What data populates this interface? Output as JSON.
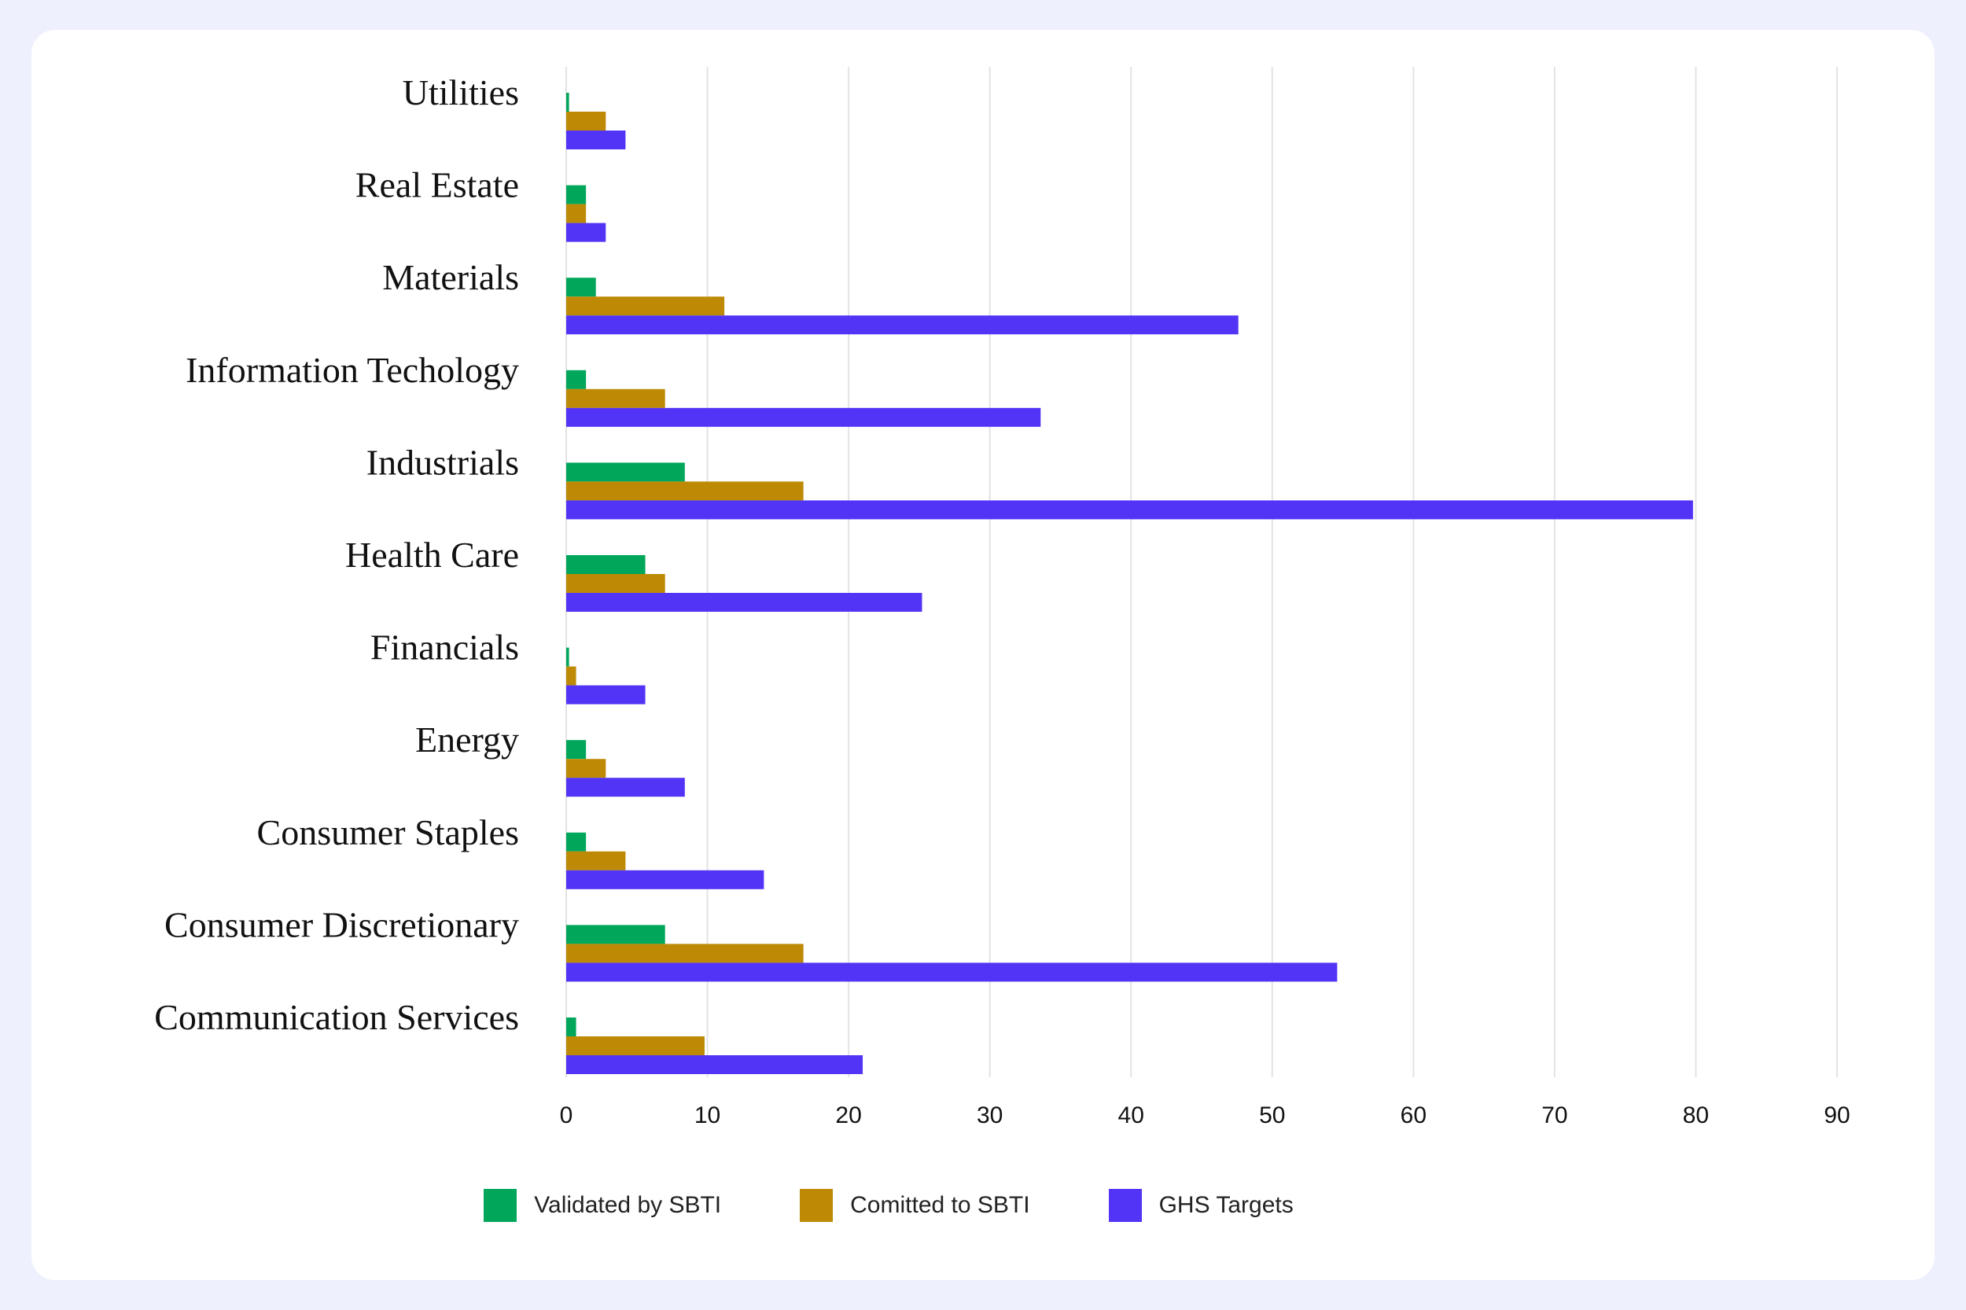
{
  "chart_data": {
    "type": "bar",
    "orientation": "horizontal",
    "title": "",
    "xlabel": "",
    "ylabel": "",
    "xlim": [
      0,
      90
    ],
    "x_ticks": [
      0,
      10,
      20,
      30,
      40,
      50,
      60,
      70,
      80,
      90
    ],
    "grid": true,
    "legend_position": "bottom",
    "categories": [
      "Utilities",
      "Real Estate",
      "Materials",
      "Information Techology",
      "Industrials",
      "Health Care",
      "Financials",
      "Energy",
      "Consumer Staples",
      "Consumer Discretionary",
      "Communication Services"
    ],
    "series": [
      {
        "name": "Validated by SBTI",
        "color": "#00a65a",
        "values": [
          0.2,
          1.4,
          2.1,
          1.4,
          8.4,
          5.6,
          0.2,
          1.4,
          1.4,
          7.0,
          0.7
        ]
      },
      {
        "name": "Comitted to SBTI",
        "color": "#be8a05",
        "values": [
          2.8,
          1.4,
          11.2,
          7.0,
          16.8,
          7.0,
          0.7,
          2.8,
          4.2,
          16.8,
          9.8
        ]
      },
      {
        "name": "GHS Targets",
        "color": "#5134f5",
        "values": [
          4.2,
          2.8,
          47.6,
          33.6,
          79.8,
          25.2,
          5.6,
          8.4,
          14.0,
          54.6,
          21.0
        ]
      }
    ]
  }
}
